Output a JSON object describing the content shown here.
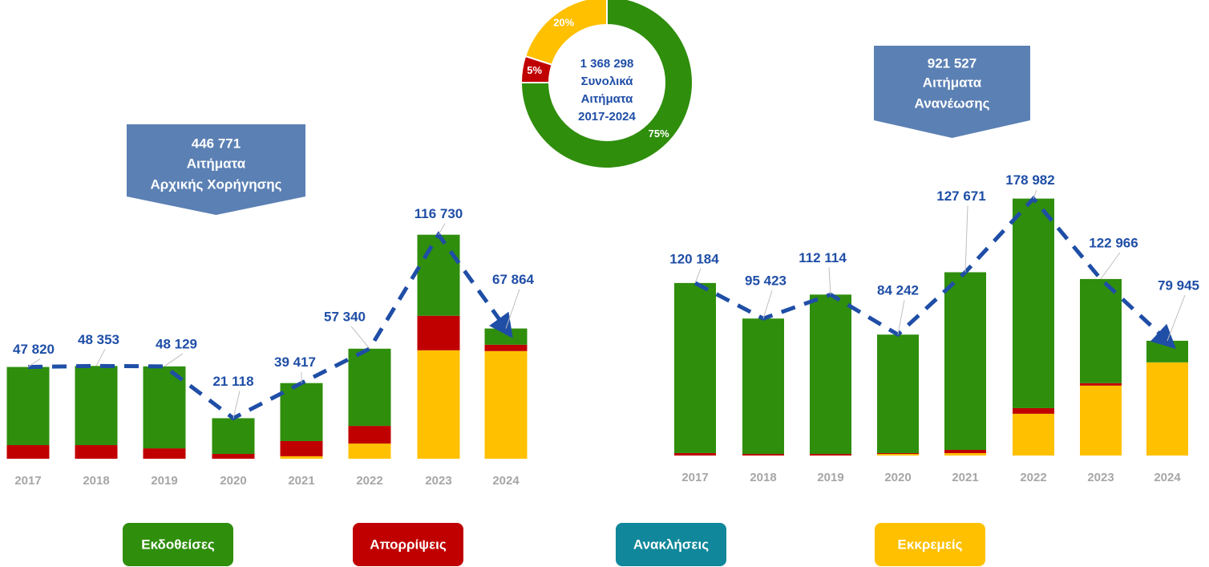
{
  "chart_data": [
    {
      "type": "bar",
      "stacked": true,
      "categories": [
        "2017",
        "2018",
        "2019",
        "2020",
        "2021",
        "2022",
        "2023",
        "2024"
      ],
      "series": [
        {
          "name": "Εκδοθείσες",
          "color": "#2f8e0c",
          "values": [
            40720,
            41253,
            42729,
            18618,
            30217,
            40240,
            42230,
            8464
          ]
        },
        {
          "name": "Απορρίψεις",
          "color": "#c00000",
          "values": [
            7100,
            7100,
            5400,
            2500,
            7900,
            9200,
            18000,
            3300
          ]
        },
        {
          "name": "Ανακλήσεις",
          "color": "#10879a",
          "values": [
            0,
            0,
            0,
            0,
            0,
            0,
            0,
            0
          ]
        },
        {
          "name": "Εκκρεμείς",
          "color": "#ffc000",
          "values": [
            0,
            0,
            0,
            0,
            1300,
            7900,
            56500,
            56100
          ]
        }
      ],
      "totals": {
        "color": "#1f4ea6",
        "values": [
          47820,
          48353,
          48129,
          21118,
          39417,
          57340,
          116730,
          67864
        ],
        "value_labels": [
          "47 820",
          "48 353",
          "48 129",
          "21 118",
          "39 417",
          "57 340",
          "116 730",
          "67 864"
        ]
      },
      "ylim": [
        0,
        140000
      ],
      "annotation": [
        "446 771",
        "Αιτήματα",
        "Αρχικής Χορήγησης"
      ]
    },
    {
      "type": "pie",
      "donut": true,
      "values": [
        75,
        5,
        20
      ],
      "value_labels": [
        "75%",
        "5%",
        "20%"
      ],
      "colors": [
        "#2f8e0c",
        "#c00000",
        "#ffc000"
      ],
      "center_text": [
        "1 368 298",
        "Συνολικά",
        "Αιτήματα",
        "2017-2024"
      ]
    },
    {
      "type": "bar",
      "stacked": true,
      "categories": [
        "2017",
        "2018",
        "2019",
        "2020",
        "2021",
        "2022",
        "2023",
        "2024"
      ],
      "series": [
        {
          "color": "#2f8e0c",
          "values": [
            118484,
            94323,
            111014,
            82542,
            123771,
            145982,
            72566,
            15045
          ]
        },
        {
          "color": "#c00000",
          "values": [
            1700,
            1100,
            1100,
            600,
            2200,
            3900,
            1700,
            0
          ]
        },
        {
          "color": "#10879a",
          "values": [
            0,
            0,
            0,
            0,
            0,
            0,
            0,
            0
          ]
        },
        {
          "color": "#ffc000",
          "values": [
            0,
            0,
            0,
            1100,
            1700,
            29100,
            48700,
            64900
          ]
        }
      ],
      "totals": {
        "color": "#1f4ea6",
        "values": [
          120184,
          95423,
          112114,
          84242,
          127671,
          178982,
          122966,
          79945
        ],
        "value_labels": [
          "120 184",
          "95 423",
          "112 114",
          "84 242",
          "127 671",
          "178 982",
          "122 966",
          "79 945"
        ]
      },
      "ylim": [
        0,
        200000
      ],
      "annotation": [
        "921 527",
        "Αιτήματα",
        "Ανανέωσης"
      ]
    }
  ]
}
